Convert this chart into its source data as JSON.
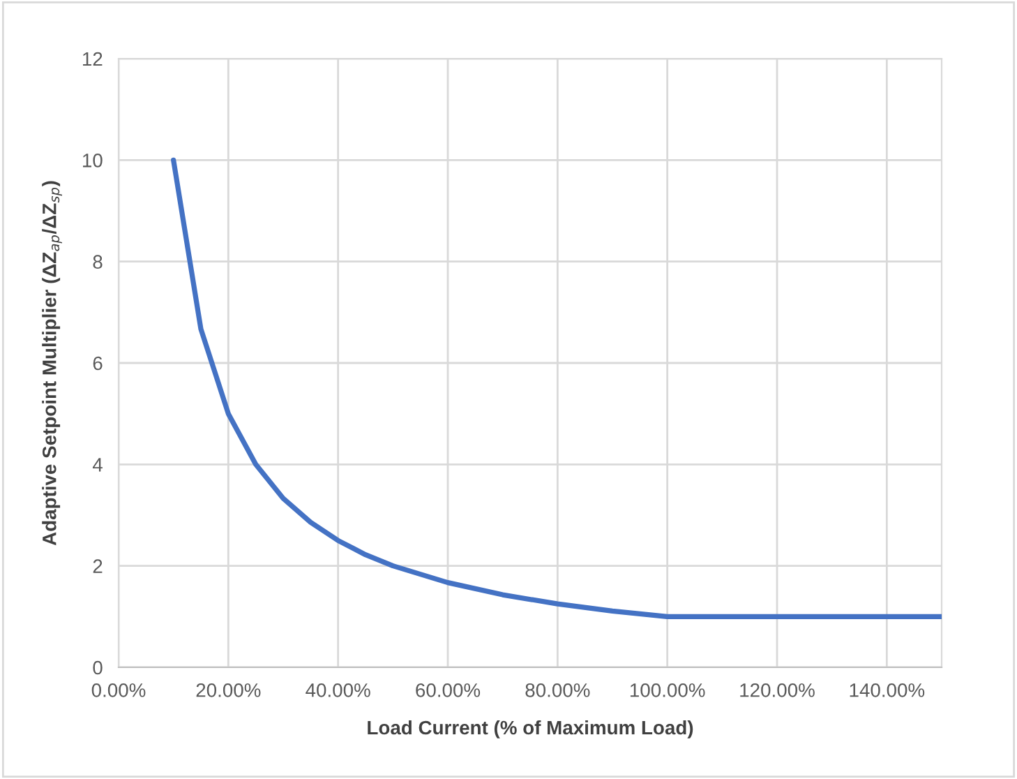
{
  "chart_data": {
    "type": "line",
    "xlabel": "Load Current (% of Maximum Load)",
    "ylabel": "Adaptive Setpoint Multiplier (ΔZ$_{ap}$/ΔZ$_{sp}$)",
    "x": [
      0.1,
      0.15,
      0.2,
      0.25,
      0.3,
      0.35,
      0.4,
      0.45,
      0.5,
      0.6,
      0.7,
      0.8,
      0.9,
      1.0,
      1.1,
      1.2,
      1.3,
      1.4,
      1.5
    ],
    "series": [
      {
        "color": "#4472c4",
        "values": [
          10,
          6.67,
          5,
          4,
          3.33,
          2.86,
          2.5,
          2.22,
          2,
          1.67,
          1.43,
          1.25,
          1.11,
          1,
          1,
          1,
          1,
          1,
          1
        ]
      }
    ],
    "xlim": [
      0,
      1.5
    ],
    "xticks": [
      {
        "value": 0,
        "label": "0.00%"
      },
      {
        "value": 0.2,
        "label": "20.00%"
      },
      {
        "value": 0.4,
        "label": "40.00%"
      },
      {
        "value": 0.6,
        "label": "60.00%"
      },
      {
        "value": 0.8,
        "label": "80.00%"
      },
      {
        "value": 1.0,
        "label": "100.00%"
      },
      {
        "value": 1.2,
        "label": "120.00%"
      },
      {
        "value": 1.4,
        "label": "140.00%"
      }
    ],
    "ylim": [
      0,
      12
    ],
    "yticks": [
      0,
      2,
      4,
      6,
      8,
      10,
      12
    ],
    "grid": true,
    "marker": "none",
    "line_style": "solid",
    "legend": false
  }
}
